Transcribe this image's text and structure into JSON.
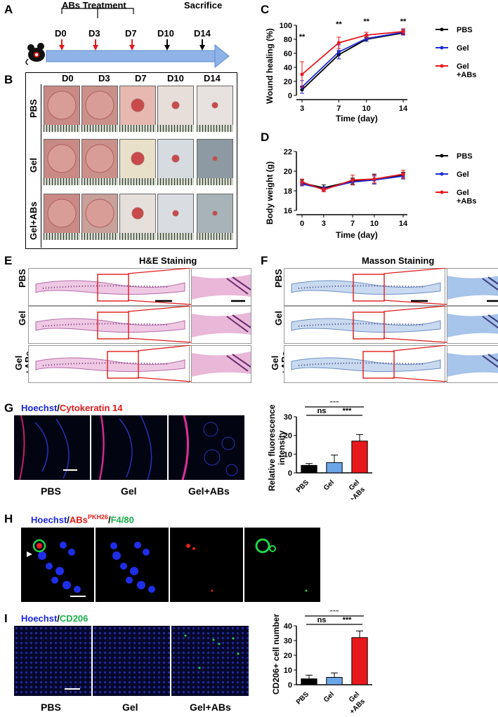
{
  "panelA": {
    "letter": "A",
    "treatment_label": "ABs Treatment",
    "sacrifice_label": "Sacrifice",
    "days": [
      "D0",
      "D3",
      "D7",
      "D10",
      "D14"
    ]
  },
  "panelB": {
    "letter": "B",
    "columns": [
      "D0",
      "D3",
      "D7",
      "D10",
      "D14"
    ],
    "rows": [
      "PBS",
      "Gel",
      "Gel+ABs"
    ]
  },
  "panelE": {
    "letter": "E",
    "title": "H&E Staining",
    "rows": [
      "PBS",
      "Gel",
      "Gel\n+ABs"
    ]
  },
  "panelF": {
    "letter": "F",
    "title": "Masson Staining",
    "rows": [
      "PBS",
      "Gel",
      "Gel\n+ABs"
    ]
  },
  "panelG": {
    "letter": "G",
    "stain_a": "Hoechst",
    "sep": "/",
    "stain_b": "Cytokeratin 14",
    "labels": [
      "PBS",
      "Gel",
      "Gel+ABs"
    ]
  },
  "panelH": {
    "letter": "H",
    "stain_a": "Hoechst",
    "sep1": "/",
    "stain_b": "ABs",
    "stain_b_sup": "PKH26",
    "sep2": "/",
    "stain_c": "F4/80"
  },
  "panelI": {
    "letter": "I",
    "stain_a": "Hoechst",
    "sep": "/",
    "stain_b": "CD206",
    "labels": [
      "PBS",
      "Gel",
      "Gel+ABs"
    ]
  },
  "colors": {
    "pbs": "#000000",
    "gel": "#1f2bd6",
    "gel_abs": "#e8191c",
    "blue_stain": "#1a26e0",
    "red_stain": "#e21a1a",
    "green_stain": "#19b24a"
  },
  "chart_data": [
    {
      "id": "C",
      "letter": "C",
      "type": "line",
      "ylabel": "Wound healing (%)",
      "xlabel": "Time (day)",
      "x": [
        3,
        7,
        10,
        14
      ],
      "xticks": [
        "3",
        "7",
        "10",
        "14"
      ],
      "ylim": [
        0,
        100
      ],
      "yticks": [
        "0",
        "20",
        "40",
        "60",
        "80",
        "100"
      ],
      "annotations": [
        "**",
        "**",
        "**",
        "**"
      ],
      "legend_placement": "right",
      "series": [
        {
          "name": "PBS",
          "values": [
            8,
            58,
            80,
            89
          ],
          "err": [
            5,
            6,
            3,
            3
          ]
        },
        {
          "name": "Gel",
          "values": [
            12,
            62,
            81,
            90
          ],
          "err": [
            9,
            10,
            4,
            4
          ]
        },
        {
          "name": "Gel\n+ABs",
          "values": [
            30,
            75,
            86,
            91
          ],
          "err": [
            18,
            8,
            4,
            4
          ]
        }
      ]
    },
    {
      "id": "D",
      "letter": "D",
      "type": "line",
      "ylabel": "Body weight (g)",
      "xlabel": "Time (day)",
      "x": [
        0,
        3,
        7,
        10,
        14
      ],
      "xticks": [
        "0",
        "3",
        "7",
        "10",
        "14"
      ],
      "ylim": [
        16,
        22
      ],
      "yticks": [
        "16",
        "18",
        "20",
        "22"
      ],
      "legend_placement": "right",
      "series": [
        {
          "name": "PBS",
          "values": [
            18.8,
            18.3,
            19.0,
            19.2,
            19.6
          ],
          "err": [
            0.3,
            0.3,
            0.3,
            0.5,
            0.3
          ]
        },
        {
          "name": "Gel",
          "values": [
            18.7,
            18.2,
            18.9,
            19.1,
            19.5
          ],
          "err": [
            0.2,
            0.2,
            0.3,
            0.4,
            0.3
          ]
        },
        {
          "name": "Gel\n+ABs",
          "values": [
            18.9,
            18.1,
            19.1,
            19.2,
            19.7
          ],
          "err": [
            0.3,
            0.2,
            0.5,
            0.4,
            0.4
          ]
        }
      ]
    },
    {
      "id": "G",
      "type": "bar",
      "ylabel": "Relative fluorescence\nintensity",
      "categories": [
        "PBS",
        "Gel",
        "Gel\n+ABs"
      ],
      "values": [
        4,
        5.5,
        17
      ],
      "err": [
        1,
        4,
        3.5
      ],
      "ylim": [
        0,
        30
      ],
      "yticks": [
        "0",
        "10",
        "20",
        "30"
      ],
      "significance": [
        {
          "from": 0,
          "to": 2,
          "label": "***"
        },
        {
          "from": 0,
          "to": 1,
          "label": "ns"
        },
        {
          "from": 1,
          "to": 2,
          "label": "***"
        }
      ]
    },
    {
      "id": "I",
      "type": "bar",
      "ylabel": "CD206+ cell number",
      "categories": [
        "PBS",
        "Gel",
        "Gel\n+ABs"
      ],
      "values": [
        4,
        5,
        32
      ],
      "err": [
        2.5,
        3,
        4.5
      ],
      "ylim": [
        0,
        40
      ],
      "yticks": [
        "0",
        "10",
        "20",
        "30",
        "40"
      ],
      "significance": [
        {
          "from": 0,
          "to": 2,
          "label": "***"
        },
        {
          "from": 0,
          "to": 1,
          "label": "ns"
        },
        {
          "from": 1,
          "to": 2,
          "label": "***"
        }
      ]
    }
  ]
}
